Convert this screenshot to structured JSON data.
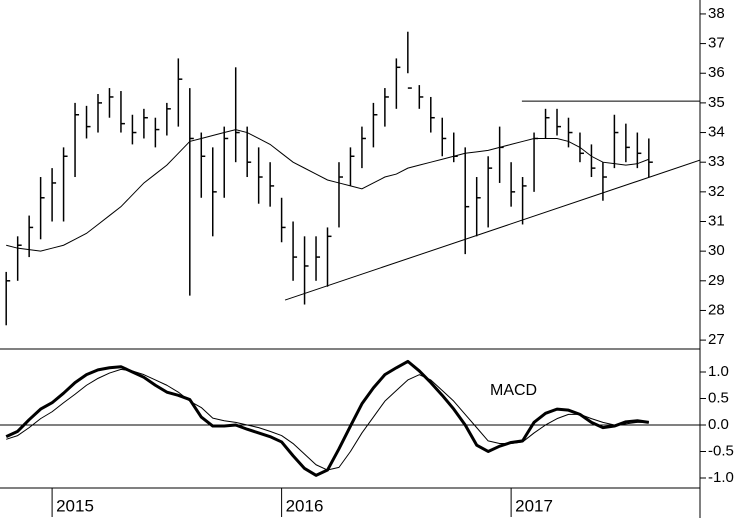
{
  "chart_data": [
    {
      "type": "ohlc",
      "color": "#000000",
      "xlim": [
        2014.773,
        2017.823
      ],
      "ylim": [
        26.7,
        38.47
      ],
      "yticks": [
        27,
        28,
        29,
        30,
        31,
        32,
        33,
        34,
        35,
        36,
        37,
        38
      ],
      "x": [
        2014.8,
        2014.85,
        2014.9,
        2014.95,
        2015.0,
        2015.05,
        2015.1,
        2015.15,
        2015.2,
        2015.25,
        2015.3,
        2015.35,
        2015.4,
        2015.45,
        2015.5,
        2015.55,
        2015.6,
        2015.65,
        2015.7,
        2015.75,
        2015.8,
        2015.85,
        2015.9,
        2015.95,
        2016.0,
        2016.05,
        2016.1,
        2016.15,
        2016.2,
        2016.25,
        2016.3,
        2016.35,
        2016.4,
        2016.45,
        2016.5,
        2016.55,
        2016.6,
        2016.65,
        2016.7,
        2016.75,
        2016.8,
        2016.85,
        2016.9,
        2016.95,
        2017.0,
        2017.05,
        2017.1,
        2017.15,
        2017.2,
        2017.25,
        2017.3,
        2017.35,
        2017.4,
        2017.45,
        2017.5,
        2017.55,
        2017.6
      ],
      "high": [
        29.3,
        30.5,
        31.2,
        32.5,
        32.8,
        33.5,
        35.0,
        34.9,
        35.3,
        35.5,
        35.4,
        34.6,
        34.8,
        34.5,
        35.0,
        36.5,
        35.5,
        34.0,
        33.5,
        34.2,
        36.2,
        34.2,
        33.5,
        33.0,
        31.8,
        31.0,
        30.5,
        30.5,
        30.8,
        33.0,
        33.5,
        34.2,
        35.0,
        35.5,
        36.5,
        37.4,
        35.6,
        35.2,
        34.5,
        34.0,
        33.5,
        32.5,
        33.2,
        34.2,
        33.0,
        32.5,
        34.0,
        34.8,
        34.8,
        34.5,
        34.0,
        33.6,
        33.0,
        34.6,
        34.3,
        34.0,
        33.8
      ],
      "low": [
        27.5,
        29.0,
        29.8,
        30.4,
        31.0,
        31.0,
        32.5,
        33.8,
        34.0,
        34.5,
        34.0,
        33.6,
        33.8,
        33.5,
        33.9,
        34.2,
        28.5,
        31.8,
        30.5,
        31.8,
        33.0,
        32.5,
        31.6,
        31.5,
        30.3,
        29.0,
        28.2,
        29.0,
        28.8,
        30.8,
        32.2,
        32.8,
        33.5,
        34.2,
        34.8,
        36.0,
        34.8,
        34.0,
        33.2,
        33.0,
        29.9,
        30.5,
        30.8,
        32.3,
        31.5,
        30.9,
        32.0,
        33.8,
        33.9,
        33.5,
        33.0,
        32.5,
        31.7,
        32.8,
        33.0,
        32.8,
        32.5
      ],
      "close": [
        29.0,
        30.2,
        30.8,
        31.8,
        32.3,
        33.2,
        34.6,
        34.2,
        35.0,
        35.2,
        34.3,
        34.0,
        34.5,
        34.1,
        34.8,
        35.8,
        33.8,
        33.2,
        32.0,
        33.8,
        34.0,
        33.0,
        32.5,
        32.2,
        30.8,
        29.8,
        29.5,
        29.8,
        30.5,
        32.5,
        33.2,
        33.8,
        34.6,
        35.2,
        36.2,
        35.5,
        35.2,
        34.5,
        33.8,
        33.2,
        31.5,
        31.8,
        32.8,
        33.5,
        32.0,
        32.2,
        33.8,
        34.5,
        34.2,
        34.0,
        33.3,
        32.8,
        32.5,
        34.0,
        33.5,
        33.3,
        33.0
      ],
      "moving_average": [
        30.2,
        30.1,
        30.05,
        30.0,
        30.1,
        30.2,
        30.4,
        30.6,
        30.9,
        31.2,
        31.5,
        31.9,
        32.3,
        32.6,
        32.9,
        33.3,
        33.7,
        33.8,
        33.9,
        34.0,
        34.1,
        34.0,
        33.8,
        33.6,
        33.3,
        33.0,
        32.8,
        32.6,
        32.4,
        32.3,
        32.2,
        32.1,
        32.3,
        32.5,
        32.6,
        32.8,
        32.9,
        33.0,
        33.1,
        33.2,
        33.3,
        33.35,
        33.4,
        33.5,
        33.6,
        33.7,
        33.8,
        33.8,
        33.8,
        33.7,
        33.5,
        33.2,
        33.0,
        32.95,
        32.9,
        32.95,
        33.1
      ],
      "trendlines": [
        {
          "x": [
            2016.015,
            2017.823
          ],
          "y": [
            28.35,
            33.07
          ]
        },
        {
          "x": [
            2017.047,
            2017.823
          ],
          "y": [
            35.06,
            35.06
          ]
        }
      ]
    },
    {
      "type": "line",
      "title": "MACD",
      "zero_line": true,
      "xlim": [
        2014.773,
        2017.823
      ],
      "ylim": [
        -1.755,
        1.434
      ],
      "xticks": [
        2015,
        2016,
        2017
      ],
      "yticks": [
        {
          "value": 1,
          "label": "1.0"
        },
        0.5,
        {
          "value": 0,
          "label": "0.0"
        },
        -0.5,
        {
          "value": -1,
          "label": "-1.0"
        }
      ],
      "x": [
        2014.8,
        2014.85,
        2014.9,
        2014.95,
        2015.0,
        2015.05,
        2015.1,
        2015.15,
        2015.2,
        2015.25,
        2015.3,
        2015.35,
        2015.4,
        2015.45,
        2015.5,
        2015.55,
        2015.6,
        2015.65,
        2015.7,
        2015.75,
        2015.8,
        2015.85,
        2015.9,
        2015.95,
        2016.0,
        2016.05,
        2016.1,
        2016.15,
        2016.2,
        2016.25,
        2016.3,
        2016.35,
        2016.4,
        2016.45,
        2016.5,
        2016.55,
        2016.6,
        2016.65,
        2016.7,
        2016.75,
        2016.8,
        2016.85,
        2016.9,
        2016.95,
        2017.0,
        2017.05,
        2017.1,
        2017.15,
        2017.2,
        2017.25,
        2017.3,
        2017.35,
        2017.4,
        2017.45,
        2017.5,
        2017.55,
        2017.6
      ],
      "series": [
        {
          "color": "#000000",
          "width": 3,
          "values": [
            -0.22,
            -0.12,
            0.1,
            0.3,
            0.42,
            0.6,
            0.8,
            0.95,
            1.04,
            1.08,
            1.1,
            1.0,
            0.9,
            0.75,
            0.62,
            0.56,
            0.48,
            0.15,
            -0.02,
            -0.02,
            0.0,
            -0.08,
            -0.15,
            -0.22,
            -0.32,
            -0.58,
            -0.82,
            -0.95,
            -0.85,
            -0.45,
            -0.02,
            0.4,
            0.7,
            0.95,
            1.08,
            1.2,
            1.02,
            0.8,
            0.56,
            0.3,
            0.0,
            -0.38,
            -0.5,
            -0.4,
            -0.33,
            -0.3,
            0.05,
            0.22,
            0.3,
            0.28,
            0.2,
            0.05,
            -0.05,
            -0.02,
            0.06,
            0.08,
            0.05
          ]
        },
        {
          "color": "#000000",
          "width": 1,
          "values": [
            -0.27,
            -0.2,
            -0.05,
            0.12,
            0.25,
            0.42,
            0.58,
            0.75,
            0.88,
            0.98,
            1.05,
            1.02,
            0.95,
            0.85,
            0.75,
            0.62,
            0.45,
            0.33,
            0.13,
            0.08,
            0.05,
            0.0,
            -0.05,
            -0.12,
            -0.2,
            -0.35,
            -0.55,
            -0.75,
            -0.85,
            -0.8,
            -0.5,
            -0.15,
            0.15,
            0.45,
            0.65,
            0.85,
            0.95,
            0.85,
            0.65,
            0.45,
            0.2,
            -0.05,
            -0.3,
            -0.35,
            -0.35,
            -0.32,
            -0.15,
            0.0,
            0.12,
            0.2,
            0.2,
            0.12,
            0.05,
            0.0,
            0.02,
            0.05,
            0.05
          ]
        }
      ]
    }
  ]
}
